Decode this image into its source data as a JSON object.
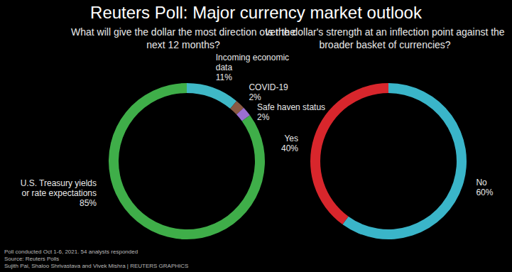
{
  "title": "Reuters Poll: Major currency market outlook",
  "chart_data": [
    {
      "type": "pie",
      "title": "What will give the dollar the most direction over the next 12 months?",
      "categories": [
        "Incoming economic data",
        "COVID-19",
        "Safe haven status",
        "U.S. Treasury yields or rate expectations"
      ],
      "values": [
        11,
        2,
        2,
        85
      ],
      "value_labels": [
        "11%",
        "2%",
        "2%",
        "85%"
      ],
      "colors": [
        "#3fb8c6",
        "#8a5a44",
        "#9a6fd0",
        "#3fae49"
      ],
      "data_labels": true
    },
    {
      "type": "pie",
      "title": "Is the dollar's strength at an inflection point against the broader basket of currencies?",
      "categories": [
        "No",
        "Yes"
      ],
      "values": [
        60,
        40
      ],
      "value_labels": [
        "60%",
        "40%"
      ],
      "colors": [
        "#3ab5c9",
        "#d8262c"
      ],
      "data_labels": true
    }
  ],
  "footnotes": [
    "Poll conducted Oct 1-6, 2021. 54 analysts responded",
    "Source: Reuters Polls",
    "Sujith Pai, Shaloo Shrivastava and Vivek Mishra | REUTERS GRAPHICS"
  ]
}
